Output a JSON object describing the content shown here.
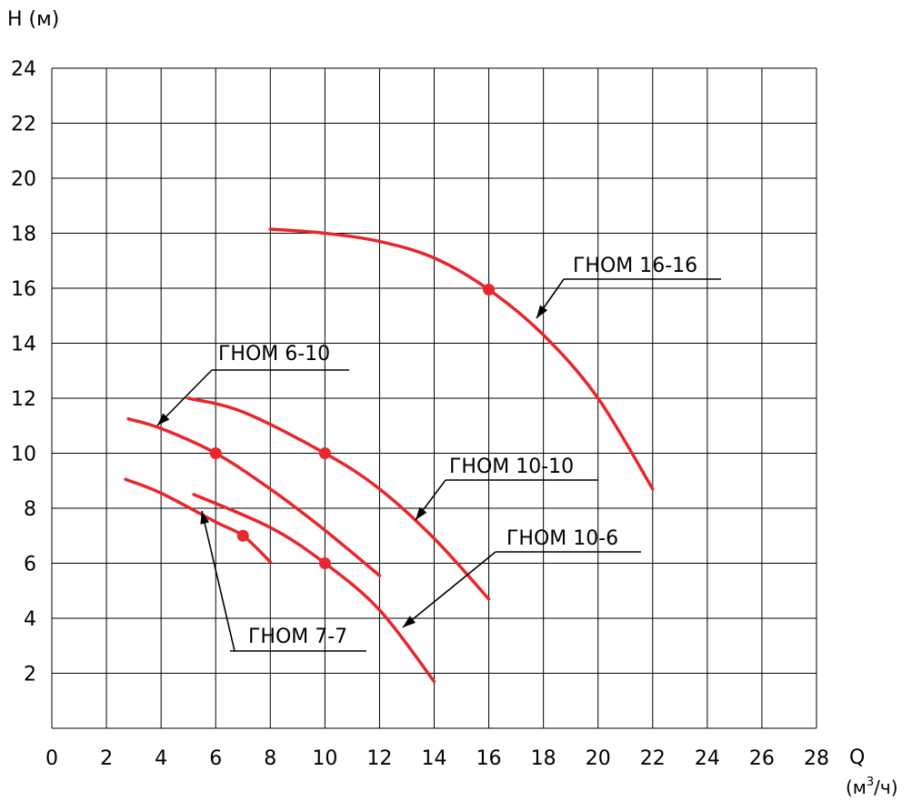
{
  "chart_data": {
    "type": "line",
    "y_axis_title": "H (м)",
    "x_axis_title": "Q",
    "x_axis_unit_prefix": "(м",
    "x_axis_unit_sup": "3",
    "x_axis_unit_suffix": "/ч)",
    "xlim": [
      0,
      28
    ],
    "ylim": [
      0,
      24
    ],
    "x_ticks": [
      "0",
      "2",
      "4",
      "6",
      "8",
      "10",
      "12",
      "14",
      "16",
      "18",
      "20",
      "22",
      "24",
      "26",
      "28"
    ],
    "y_ticks": [
      "2",
      "4",
      "6",
      "8",
      "10",
      "12",
      "14",
      "16",
      "18",
      "20",
      "22",
      "24"
    ],
    "grid": true,
    "series": [
      {
        "name": "ГНОМ 16-16",
        "points": [
          [
            8,
            18.15
          ],
          [
            10,
            18
          ],
          [
            12,
            17.7
          ],
          [
            14,
            17.1
          ],
          [
            16,
            15.95
          ],
          [
            18,
            14.3
          ],
          [
            20,
            12
          ],
          [
            22,
            8.7
          ]
        ],
        "duty_point": [
          16,
          15.95
        ]
      },
      {
        "name": "ГНОМ 6-10",
        "points": [
          [
            2.8,
            11.25
          ],
          [
            4,
            10.9
          ],
          [
            6,
            10
          ],
          [
            8,
            8.7
          ],
          [
            10,
            7.2
          ],
          [
            12,
            5.55
          ]
        ],
        "duty_point": [
          6,
          10
        ]
      },
      {
        "name": "ГНОМ 10-10",
        "points": [
          [
            5,
            12
          ],
          [
            7,
            11.5
          ],
          [
            10,
            10
          ],
          [
            12,
            8.7
          ],
          [
            14,
            6.9
          ],
          [
            16,
            4.7
          ]
        ],
        "duty_point": [
          10,
          10
        ]
      },
      {
        "name": "ГНОМ 10-6",
        "points": [
          [
            5.2,
            8.5
          ],
          [
            8,
            7.3
          ],
          [
            10,
            6
          ],
          [
            12,
            4.3
          ],
          [
            14,
            1.7
          ]
        ],
        "duty_point": [
          10,
          6
        ]
      },
      {
        "name": "ГНОМ 7-7",
        "points": [
          [
            2.7,
            9.05
          ],
          [
            4,
            8.55
          ],
          [
            6,
            7.5
          ],
          [
            7,
            7
          ],
          [
            8,
            6.05
          ]
        ],
        "duty_point": [
          7,
          7
        ]
      }
    ]
  }
}
